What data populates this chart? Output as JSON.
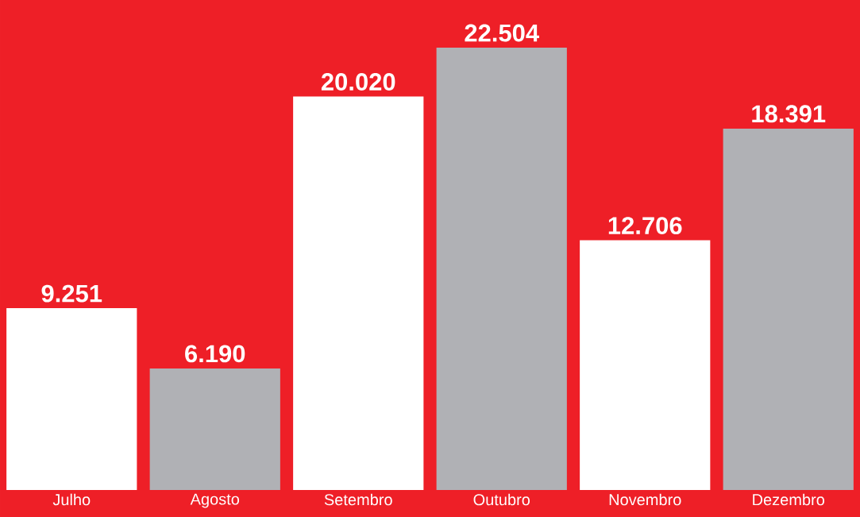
{
  "chart_data": {
    "type": "bar",
    "categories": [
      "Julho",
      "Agosto",
      "Setembro",
      "Outubro",
      "Novembro",
      "Dezembro"
    ],
    "values": [
      9251,
      6190,
      20020,
      22504,
      12706,
      18391
    ],
    "colors": [
      "#ffffff",
      "#b0b1b5",
      "#ffffff",
      "#b0b1b5",
      "#ffffff",
      "#b0b1b5"
    ],
    "value_labels": [
      "9.251",
      "6.190",
      "20.020",
      "22.504",
      "12.706",
      "18.391"
    ]
  }
}
